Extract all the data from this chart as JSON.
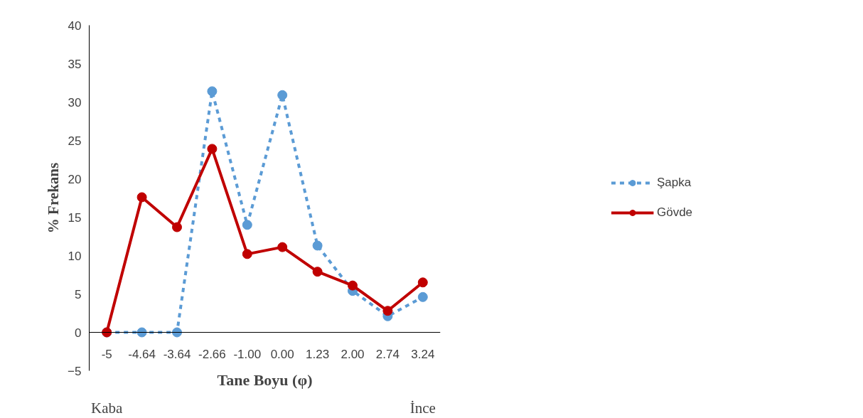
{
  "chart_data": {
    "type": "line",
    "xlabel": "Tane Boyu (φ)",
    "ylabel": "% Frekans",
    "categories": [
      "-5",
      "-4.64",
      "-3.64",
      "-2.66",
      "-1.00",
      "0.00",
      "1.23",
      "2.00",
      "2.74",
      "3.24"
    ],
    "series": [
      {
        "name": "Şapka",
        "color": "#5b9bd5",
        "line_style": "dashed",
        "values": [
          0,
          0,
          0,
          31.4,
          14.0,
          30.9,
          11.3,
          5.4,
          2.1,
          4.6
        ]
      },
      {
        "name": "Gövde",
        "color": "#c00000",
        "line_style": "solid",
        "values": [
          0,
          17.6,
          13.7,
          23.9,
          10.2,
          11.1,
          7.9,
          6.1,
          2.8,
          6.5
        ]
      }
    ],
    "ylim": [
      -5,
      40
    ],
    "yticks": [
      -5,
      0,
      5,
      10,
      15,
      20,
      25,
      30,
      35,
      40
    ],
    "grid": false,
    "legend": "right",
    "marker": "circle",
    "annotations": [
      "Kaba",
      "İnce"
    ]
  }
}
